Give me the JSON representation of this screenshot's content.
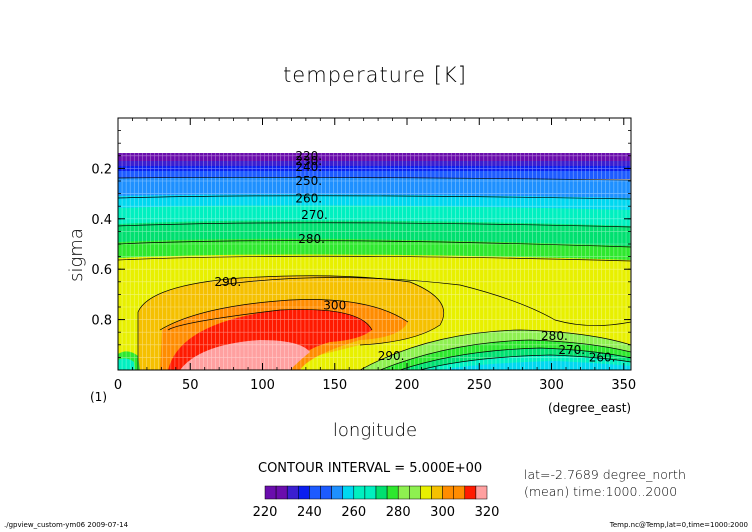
{
  "chart_data": {
    "type": "contour",
    "title": "temperature [K]",
    "xlabel": "longitude",
    "xunit": "(degree_east)",
    "ylabel": "sigma",
    "ylabel_suffix": "(1)",
    "xlim": [
      0,
      355
    ],
    "ylim": [
      1.0,
      0.0
    ],
    "x_ticks": [
      0,
      50,
      100,
      150,
      200,
      250,
      300,
      350
    ],
    "y_ticks": [
      0.2,
      0.4,
      0.6,
      0.8
    ],
    "contour_interval_text": "CONTOUR INTERVAL = 5.000E+00",
    "info_line1": "lat=-2.7689 degree_north",
    "info_line2": "(mean) time:1000..2000",
    "footer_left": "./gpview_custom-ym06  2009-07-14",
    "footer_right": "Temp.nc@Temp,lat=0,time=1000:2000",
    "levels": [
      220,
      225,
      230,
      235,
      240,
      245,
      250,
      255,
      260,
      265,
      270,
      275,
      280,
      285,
      290,
      295,
      300,
      305,
      310,
      315,
      320
    ],
    "colorbar_ticks": [
      220,
      240,
      260,
      280,
      300,
      320
    ],
    "colors": [
      "#6a0dad",
      "#3b1fd0",
      "#0a1ef0",
      "#1d5bff",
      "#1e90ff",
      "#00d8f0",
      "#00f0c0",
      "#00e070",
      "#2ee82e",
      "#8ef050",
      "#e8f000",
      "#f5c000",
      "#ff8c00",
      "#ff1a00",
      "#ffa0a0"
    ],
    "line_labels": [
      {
        "text": "220.",
        "x": 132,
        "y": 0.15
      },
      {
        "text": "230.",
        "x": 132,
        "y": 0.17
      },
      {
        "text": "240.",
        "x": 132,
        "y": 0.195
      },
      {
        "text": "250.",
        "x": 132,
        "y": 0.25
      },
      {
        "text": "260.",
        "x": 132,
        "y": 0.32
      },
      {
        "text": "270.",
        "x": 136,
        "y": 0.385
      },
      {
        "text": "280.",
        "x": 134,
        "y": 0.48
      },
      {
        "text": "290.",
        "x": 76,
        "y": 0.65
      },
      {
        "text": "300",
        "x": 150,
        "y": 0.745
      },
      {
        "text": "280.",
        "x": 302,
        "y": 0.865
      },
      {
        "text": "270.",
        "x": 314,
        "y": 0.92
      },
      {
        "text": "260.",
        "x": 335,
        "y": 0.95
      },
      {
        "text": "290.",
        "x": 189,
        "y": 0.945
      }
    ],
    "grid": true
  }
}
